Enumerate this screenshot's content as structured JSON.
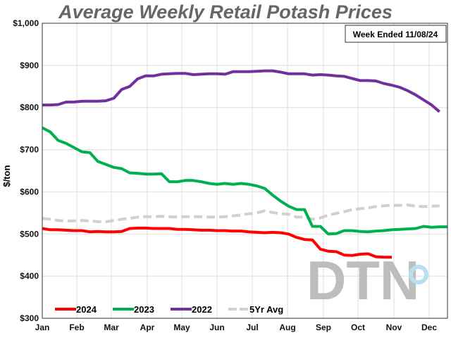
{
  "chart_data": {
    "type": "line",
    "title": "Average Weekly Retail Potash Prices",
    "annotation": "Week Ended 11/08/24",
    "ylabel": "$/ton",
    "xlabel": "",
    "ylim": [
      300,
      1000
    ],
    "yticks": [
      "$300",
      "$400",
      "$500",
      "$600",
      "$700",
      "$800",
      "$900",
      "$1,000"
    ],
    "xticks": [
      "Jan",
      "Feb",
      "Mar",
      "Apr",
      "May",
      "Jun",
      "Jul",
      "Aug",
      "Sep",
      "Oct",
      "Nov",
      "Dec"
    ],
    "x_unit": "week of year",
    "grid": true,
    "legend": "bottom-left",
    "watermark": "DTN",
    "series": [
      {
        "name": "2024",
        "color": "#ff0000",
        "dashed": false,
        "values": [
          513,
          510,
          510,
          509,
          508,
          508,
          505,
          506,
          505,
          505,
          506,
          513,
          514,
          514,
          513,
          513,
          513,
          511,
          511,
          510,
          509,
          509,
          508,
          508,
          507,
          507,
          505,
          504,
          503,
          504,
          503,
          500,
          492,
          487,
          486,
          464,
          459,
          458,
          450,
          449,
          452,
          453,
          446,
          445,
          445
        ]
      },
      {
        "name": "2023",
        "color": "#00b050",
        "dashed": false,
        "values": [
          752,
          742,
          722,
          715,
          705,
          695,
          693,
          672,
          665,
          658,
          655,
          645,
          644,
          642,
          642,
          643,
          624,
          624,
          627,
          627,
          624,
          620,
          618,
          620,
          618,
          620,
          618,
          614,
          608,
          592,
          578,
          566,
          558,
          558,
          518,
          518,
          500,
          501,
          508,
          508,
          506,
          505,
          507,
          508,
          510,
          511,
          512,
          513,
          518,
          516,
          517,
          517
        ]
      },
      {
        "name": "2022",
        "color": "#7030a0",
        "dashed": false,
        "values": [
          806,
          806,
          807,
          813,
          813,
          815,
          815,
          815,
          816,
          822,
          843,
          850,
          868,
          875,
          875,
          879,
          880,
          881,
          881,
          878,
          879,
          880,
          880,
          879,
          885,
          885,
          885,
          886,
          887,
          887,
          884,
          880,
          880,
          880,
          877,
          878,
          877,
          875,
          874,
          869,
          864,
          864,
          863,
          857,
          853,
          848,
          840,
          830,
          818,
          806,
          790
        ]
      },
      {
        "name": "5Yr Avg",
        "color": "#d0d0d0",
        "dashed": true,
        "values": [
          537,
          535,
          532,
          531,
          531,
          532,
          531,
          529,
          529,
          532,
          535,
          537,
          540,
          541,
          541,
          542,
          541,
          540,
          541,
          541,
          541,
          540,
          540,
          541,
          543,
          545,
          548,
          550,
          555,
          551,
          548,
          547,
          540,
          540,
          535,
          538,
          545,
          549,
          553,
          558,
          560,
          562,
          565,
          567,
          568,
          568,
          569,
          566,
          565,
          566,
          567
        ]
      }
    ]
  }
}
